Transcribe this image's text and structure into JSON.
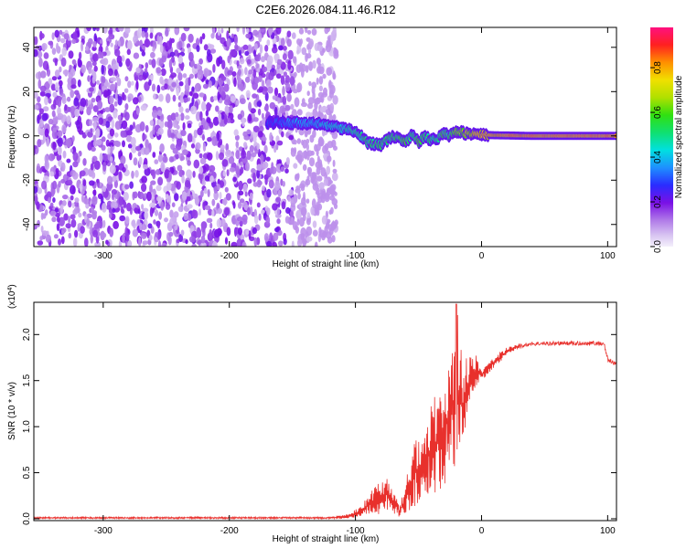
{
  "figure": {
    "title": "C2E6.2026.084.11.46.R12"
  },
  "chart_data": [
    {
      "type": "heatmap",
      "xlabel": "Height of straight line (km)",
      "ylabel": "Frequency (Hz)",
      "xlim": [
        -355,
        107
      ],
      "ylim": [
        -50,
        49
      ],
      "xticks": [
        -300,
        -200,
        -100,
        0,
        100
      ],
      "yticks": [
        -40,
        -20,
        0,
        20,
        40
      ],
      "colorbar": {
        "label": "Normalized spectral amplitude",
        "range": [
          0.0,
          0.98
        ],
        "ticks": [
          0.0,
          0.2,
          0.4,
          0.6,
          0.8
        ],
        "tick_labels": [
          "0.0",
          "0.2",
          "0.4",
          "0.6",
          "0.8"
        ]
      },
      "noise_region": {
        "x_start": -355,
        "x_end": -115,
        "y_range": [
          -50,
          49
        ]
      },
      "ridge": {
        "x": [
          -170,
          -150,
          -130,
          -115,
          -100,
          -90,
          -80,
          -70,
          -60,
          -55,
          -50,
          -45,
          -40,
          -35,
          -30,
          -25,
          -20,
          -10,
          0,
          10,
          20,
          40,
          60,
          80,
          107
        ],
        "frequency": [
          6,
          6,
          5.5,
          4,
          2,
          -3,
          -4,
          0,
          -3,
          1,
          -3,
          0,
          -2,
          -1,
          1,
          0,
          2,
          1,
          0.5,
          0.3,
          0.2,
          0,
          0,
          0,
          0
        ],
        "amplitude": [
          0.3,
          0.4,
          0.45,
          0.5,
          0.55,
          0.6,
          0.6,
          0.6,
          0.65,
          0.6,
          0.65,
          0.6,
          0.6,
          0.55,
          0.65,
          0.6,
          0.75,
          0.8,
          0.9,
          0.9,
          0.95,
          0.95,
          0.95,
          0.95,
          0.95
        ]
      }
    },
    {
      "type": "line",
      "xlabel": "Height of straight line (km)",
      "ylabel": "SNR (10 * v/v)",
      "y_multiplier": "(x10",
      "y_multiplier_exp": "4",
      "y_multiplier_close": ")",
      "xlim": [
        -355,
        107
      ],
      "ylim": [
        -0.02,
        2.35
      ],
      "xticks": [
        -300,
        -200,
        -100,
        0,
        100
      ],
      "yticks": [
        0.0,
        0.5,
        1.0,
        1.5,
        2.0
      ],
      "ytick_labels": [
        "0.0",
        "0.5",
        "1.0",
        "1.5",
        "2.0"
      ],
      "color": "#e8302c",
      "envelope": {
        "x": [
          -355,
          -120,
          -105,
          -95,
          -85,
          -80,
          -75,
          -70,
          -65,
          -60,
          -55,
          -50,
          -45,
          -40,
          -35,
          -30,
          -25,
          -22,
          -20,
          -15,
          -10,
          -5,
          0,
          5,
          10,
          15,
          20,
          30,
          40,
          60,
          80,
          97,
          100,
          107
        ],
        "low": [
          0.0,
          0.0,
          0.0,
          0.02,
          0.05,
          0.05,
          0.1,
          0.05,
          0.02,
          0.02,
          0.1,
          0.15,
          0.2,
          0.25,
          0.3,
          0.35,
          0.5,
          0.5,
          0.6,
          0.7,
          1.2,
          1.4,
          1.5,
          1.55,
          1.65,
          1.7,
          1.78,
          1.85,
          1.88,
          1.88,
          1.88,
          1.88,
          1.7,
          1.65
        ],
        "high": [
          0.02,
          0.02,
          0.05,
          0.15,
          0.35,
          0.4,
          0.45,
          0.3,
          0.15,
          0.4,
          0.8,
          0.95,
          0.9,
          1.3,
          1.4,
          1.6,
          1.7,
          1.9,
          2.33,
          1.8,
          1.75,
          1.8,
          1.65,
          1.7,
          1.75,
          1.82,
          1.86,
          1.9,
          1.92,
          1.93,
          1.93,
          1.93,
          1.76,
          1.7
        ]
      }
    }
  ]
}
